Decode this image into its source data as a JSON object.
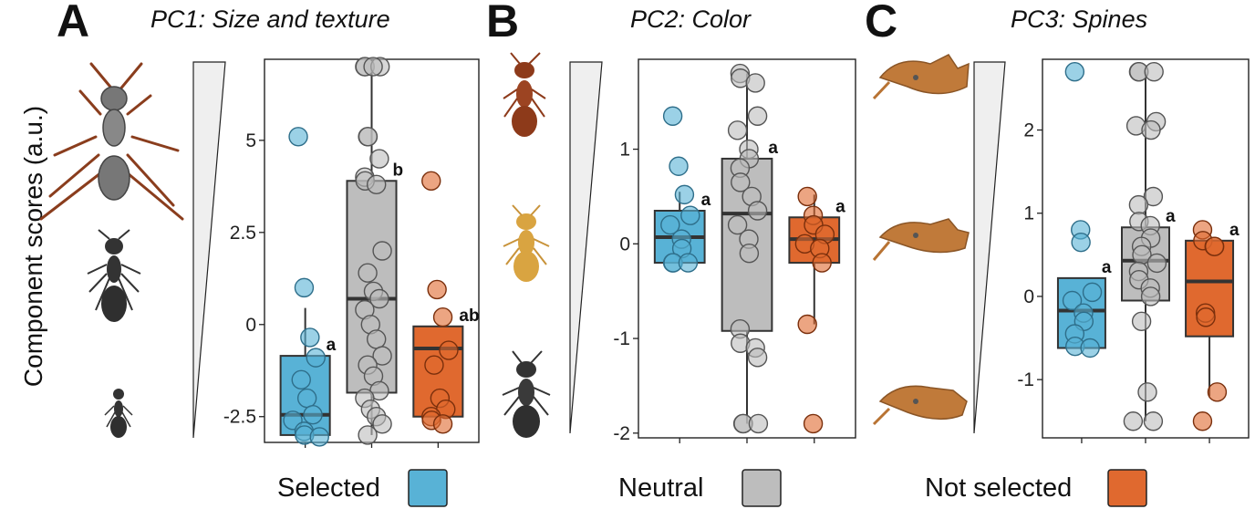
{
  "y_axis_label": "Component scores (a.u.)",
  "groups": [
    "Selected",
    "Neutral",
    "Not selected"
  ],
  "colors": {
    "Selected": "#58b2d6",
    "Neutral": "#bdbdbd",
    "Not selected": "#e0692f"
  },
  "legend": [
    {
      "label": "Selected",
      "color": "#58b2d6"
    },
    {
      "label": "Neutral",
      "color": "#bdbdbd"
    },
    {
      "label": "Not selected",
      "color": "#e0692f"
    }
  ],
  "chart_data": [
    {
      "type": "boxplot",
      "panel": "A",
      "title": "PC1: Size and texture",
      "ylim": [
        -3.2,
        7.2
      ],
      "yticks": [
        -2.5,
        0,
        2.5,
        5
      ],
      "ytick_labels": [
        "-2.5",
        "0",
        "2.5",
        "5"
      ],
      "boxes": [
        {
          "group": "Selected",
          "q1": -3.0,
          "median": -2.45,
          "q3": -0.85,
          "whisker_low": -3.0,
          "whisker_high": 0.45,
          "letter": "a",
          "points": [
            5.1,
            1.0,
            -0.35,
            -0.9,
            -1.5,
            -2.0,
            -2.45,
            -2.6,
            -2.9,
            -3.0,
            -3.05
          ]
        },
        {
          "group": "Neutral",
          "q1": -1.85,
          "median": 0.7,
          "q3": 3.9,
          "whisker_low": -3.0,
          "whisker_high": 7.0,
          "letter": "b",
          "points": [
            7.0,
            7.0,
            7.0,
            7.0,
            5.1,
            5.1,
            4.5,
            4.0,
            3.9,
            3.8,
            2.0,
            1.4,
            0.9,
            0.7,
            0.4,
            0.0,
            -0.4,
            -0.85,
            -1.1,
            -1.4,
            -1.8,
            -2.0,
            -2.3,
            -2.5,
            -2.7,
            -3.0
          ]
        },
        {
          "group": "Not selected",
          "q1": -2.5,
          "median": -0.65,
          "q3": -0.05,
          "whisker_low": -2.5,
          "whisker_high": -0.05,
          "letter": "ab",
          "points": [
            3.9,
            0.95,
            0.2,
            -0.7,
            -1.1,
            -2.0,
            -2.3,
            -2.5,
            -2.6,
            -2.7
          ]
        }
      ]
    },
    {
      "type": "boxplot",
      "panel": "B",
      "title": "PC2: Color",
      "ylim": [
        -2.05,
        1.95
      ],
      "yticks": [
        -2,
        -1,
        0,
        1
      ],
      "ytick_labels": [
        "-2",
        "-1",
        "0",
        "1"
      ],
      "boxes": [
        {
          "group": "Selected",
          "q1": -0.2,
          "median": 0.07,
          "q3": 0.35,
          "whisker_low": -0.2,
          "whisker_high": 0.55,
          "letter": "a",
          "points": [
            1.35,
            0.82,
            0.52,
            0.3,
            0.2,
            0.05,
            -0.05,
            -0.2,
            -0.2,
            -0.2
          ]
        },
        {
          "group": "Neutral",
          "q1": -0.92,
          "median": 0.32,
          "q3": 0.9,
          "whisker_low": -1.9,
          "whisker_high": 1.8,
          "letter": "a",
          "points": [
            1.8,
            1.75,
            1.7,
            1.35,
            1.2,
            1.0,
            0.9,
            0.8,
            0.65,
            0.5,
            0.35,
            0.2,
            0.05,
            -0.1,
            -0.9,
            -1.05,
            -1.1,
            -1.2,
            -1.9,
            -1.9,
            -1.9
          ]
        },
        {
          "group": "Not selected",
          "q1": -0.2,
          "median": 0.05,
          "q3": 0.28,
          "whisker_low": -0.85,
          "whisker_high": 0.52,
          "letter": "a",
          "points": [
            0.5,
            0.3,
            0.2,
            0.1,
            0.0,
            -0.05,
            -0.2,
            -0.85,
            -1.9
          ]
        }
      ]
    },
    {
      "type": "boxplot",
      "panel": "C",
      "title": "PC3: Spines",
      "ylim": [
        -1.7,
        2.85
      ],
      "yticks": [
        -1,
        0,
        1,
        2
      ],
      "ytick_labels": [
        "-1",
        "0",
        "1",
        "2"
      ],
      "boxes": [
        {
          "group": "Selected",
          "q1": -0.62,
          "median": -0.17,
          "q3": 0.22,
          "whisker_low": -0.62,
          "whisker_high": 0.22,
          "letter": "a",
          "points": [
            2.7,
            0.8,
            0.65,
            0.05,
            -0.05,
            -0.2,
            -0.3,
            -0.45,
            -0.6,
            -0.62
          ]
        },
        {
          "group": "Neutral",
          "q1": -0.05,
          "median": 0.43,
          "q3": 0.83,
          "whisker_low": -1.5,
          "whisker_high": 2.7,
          "letter": "a",
          "points": [
            2.7,
            2.7,
            2.7,
            2.1,
            2.05,
            2.0,
            1.2,
            1.1,
            0.9,
            0.85,
            0.7,
            0.6,
            0.5,
            0.4,
            0.3,
            0.2,
            0.1,
            0.0,
            -0.3,
            -1.15,
            -1.5,
            -1.5
          ]
        },
        {
          "group": "Not selected",
          "q1": -0.48,
          "median": 0.18,
          "q3": 0.67,
          "whisker_low": -1.2,
          "whisker_high": 0.67,
          "letter": "a",
          "points": [
            0.8,
            0.67,
            0.6,
            0.6,
            -0.2,
            -0.25,
            -1.15,
            -1.5
          ]
        }
      ]
    }
  ]
}
